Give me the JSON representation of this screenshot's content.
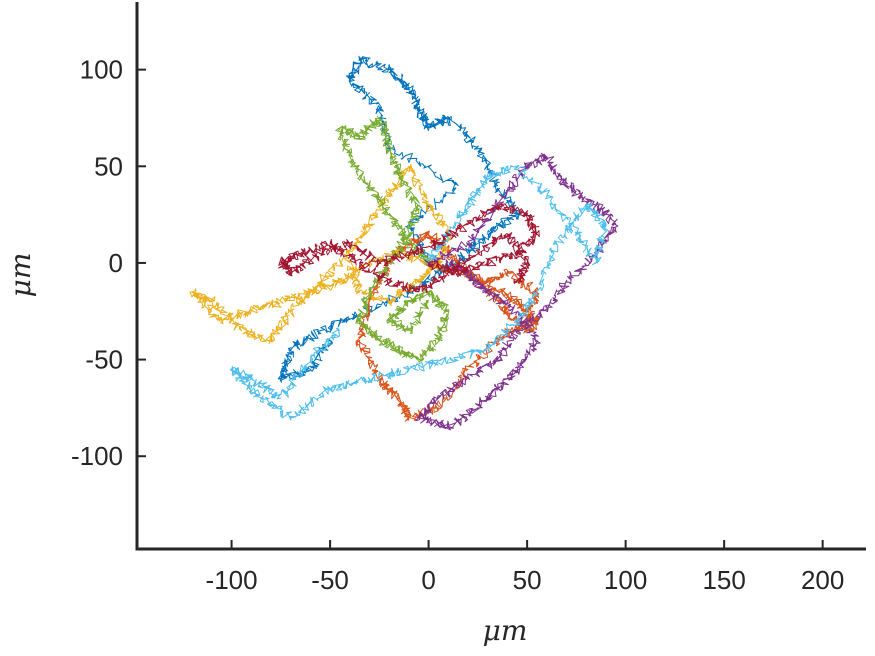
{
  "chart_data": {
    "type": "line",
    "title": "",
    "xlabel": "μm",
    "ylabel": "μm",
    "xlim": [
      -148,
      222
    ],
    "ylim": [
      -148,
      135
    ],
    "xticks": [
      -100,
      -50,
      0,
      50,
      100,
      150,
      200
    ],
    "xtick_labels": [
      "-100",
      "-50",
      "0",
      "50",
      "100",
      "150",
      "200"
    ],
    "yticks": [
      -100,
      -50,
      0,
      50,
      100
    ],
    "ytick_labels": [
      "-100",
      "-50",
      "0",
      "50",
      "100"
    ],
    "grid": false,
    "legend": "none",
    "series": [
      {
        "color": "#0072BD",
        "x": [
          0,
          -10,
          15,
          -20,
          -25,
          -40,
          -35,
          -20,
          -10,
          -5,
          0,
          10,
          25,
          35,
          45,
          30,
          20,
          5,
          -10,
          -30,
          -55,
          -70,
          -75,
          -60,
          -50
        ],
        "y": [
          0,
          20,
          40,
          60,
          80,
          95,
          105,
          100,
          90,
          80,
          70,
          75,
          60,
          40,
          25,
          15,
          5,
          -5,
          -15,
          -25,
          -35,
          -45,
          -60,
          -55,
          -40
        ]
      },
      {
        "color": "#D95319",
        "x": [
          0,
          15,
          30,
          45,
          55,
          50,
          40,
          30,
          20,
          10,
          0,
          -10,
          -20,
          -30,
          -35,
          -25,
          -15,
          -10,
          5,
          20,
          35,
          50,
          55,
          40,
          30
        ],
        "y": [
          0,
          -5,
          -10,
          -20,
          -30,
          -35,
          -25,
          -15,
          -5,
          5,
          15,
          10,
          0,
          -20,
          -40,
          -60,
          -70,
          -80,
          -75,
          -55,
          -40,
          -30,
          -15,
          -5,
          -10
        ]
      },
      {
        "color": "#EDB120",
        "x": [
          0,
          -15,
          -30,
          -45,
          -60,
          -75,
          -90,
          -105,
          -120,
          -110,
          -95,
          -80,
          -70,
          -55,
          -40,
          -30,
          -20,
          -10,
          0,
          10,
          5,
          -5,
          -20,
          -35,
          -40
        ],
        "y": [
          0,
          5,
          0,
          -10,
          -15,
          -20,
          -25,
          -30,
          -15,
          -20,
          -35,
          -40,
          -25,
          -10,
          5,
          20,
          35,
          50,
          30,
          15,
          0,
          -10,
          -20,
          -15,
          0
        ]
      },
      {
        "color": "#7E2F8E",
        "x": [
          0,
          20,
          35,
          50,
          60,
          70,
          85,
          95,
          85,
          70,
          60,
          45,
          35,
          20,
          5,
          -5,
          10,
          25,
          35,
          45,
          55,
          45,
          30,
          20,
          10
        ],
        "y": [
          0,
          10,
          30,
          50,
          55,
          40,
          30,
          20,
          5,
          -10,
          -25,
          -35,
          -50,
          -60,
          -70,
          -80,
          -85,
          -75,
          -65,
          -55,
          -40,
          -25,
          -15,
          -5,
          0
        ]
      },
      {
        "color": "#77AC30",
        "x": [
          0,
          -10,
          -20,
          -30,
          -40,
          -45,
          -35,
          -25,
          -20,
          -15,
          -5,
          -10,
          -20,
          -30,
          -35,
          -25,
          -15,
          -5,
          5,
          10,
          0,
          -10,
          -20,
          -10,
          0
        ],
        "y": [
          0,
          10,
          25,
          40,
          55,
          70,
          65,
          75,
          60,
          45,
          30,
          15,
          0,
          -15,
          -30,
          -40,
          -45,
          -50,
          -40,
          -25,
          -15,
          -20,
          -30,
          -35,
          -20
        ]
      },
      {
        "color": "#4DBEEE",
        "x": [
          0,
          10,
          20,
          30,
          45,
          60,
          75,
          85,
          90,
          80,
          65,
          55,
          45,
          30,
          10,
          -10,
          -30,
          -50,
          -70,
          -85,
          -100,
          -90,
          -75,
          -60,
          -45
        ],
        "y": [
          0,
          15,
          30,
          45,
          50,
          35,
          15,
          0,
          20,
          30,
          10,
          -15,
          -30,
          -45,
          -50,
          -55,
          -60,
          -65,
          -80,
          -70,
          -55,
          -60,
          -70,
          -50,
          -35
        ]
      },
      {
        "color": "#A2142F",
        "x": [
          0,
          15,
          30,
          45,
          55,
          50,
          35,
          20,
          5,
          -10,
          -25,
          -40,
          -55,
          -70,
          -75,
          -65,
          -50,
          -35,
          -20,
          -5,
          10,
          25,
          40,
          50,
          45
        ],
        "y": [
          0,
          -5,
          0,
          5,
          15,
          25,
          30,
          20,
          10,
          5,
          0,
          10,
          5,
          -5,
          0,
          5,
          10,
          0,
          -10,
          -15,
          -5,
          5,
          15,
          0,
          -10
        ]
      }
    ]
  }
}
